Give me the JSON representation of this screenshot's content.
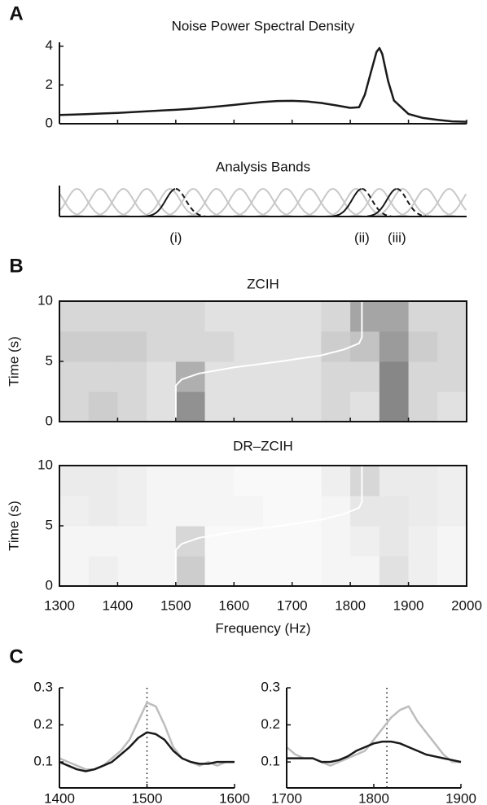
{
  "chart_data": [
    {
      "type": "line",
      "panel": "A",
      "title": "Noise Power Spectral Density",
      "x": [
        1300,
        1325,
        1350,
        1375,
        1400,
        1425,
        1450,
        1475,
        1500,
        1525,
        1550,
        1575,
        1600,
        1625,
        1650,
        1675,
        1700,
        1725,
        1750,
        1775,
        1800,
        1815,
        1825,
        1835,
        1845,
        1850,
        1855,
        1865,
        1875,
        1900,
        1925,
        1950,
        1975,
        2000
      ],
      "series": [
        {
          "color": "#1a1a1a",
          "values": [
            0.45,
            0.47,
            0.5,
            0.53,
            0.56,
            0.6,
            0.64,
            0.68,
            0.72,
            0.77,
            0.83,
            0.9,
            0.97,
            1.05,
            1.12,
            1.17,
            1.18,
            1.15,
            1.07,
            0.95,
            0.82,
            0.85,
            1.5,
            2.6,
            3.7,
            3.9,
            3.6,
            2.2,
            1.2,
            0.5,
            0.3,
            0.2,
            0.12,
            0.1
          ]
        }
      ],
      "xlim": [
        1300,
        2000
      ],
      "xticks": [
        1300,
        1400,
        1500,
        1600,
        1700,
        1800,
        1900,
        2000
      ],
      "xtick_labels": false,
      "ylim": [
        0,
        4.2
      ],
      "yticks": [
        0,
        2,
        4
      ]
    },
    {
      "type": "bands",
      "title": "Analysis Bands",
      "xlim": [
        1300,
        2000
      ],
      "color": "#c8c8c8",
      "centers": [
        1290,
        1330,
        1370,
        1410,
        1450,
        1490,
        1530,
        1570,
        1610,
        1650,
        1690,
        1730,
        1770,
        1810,
        1850,
        1890,
        1930,
        1970,
        2010
      ],
      "highlighted": [
        {
          "center": 1500,
          "label": "(i)"
        },
        {
          "center": 1820,
          "label": "(ii)"
        },
        {
          "center": 1880,
          "label": "(iii)"
        }
      ],
      "highlight_color": "#1a1a1a"
    },
    {
      "type": "heatmap",
      "panel": "B",
      "title": "ZCIH",
      "ylabel": "Time (s)",
      "xlim": [
        1300,
        2000
      ],
      "ylim": [
        0,
        10
      ],
      "xticks": [
        1300,
        1400,
        1500,
        1600,
        1700,
        1800,
        1900,
        2000
      ],
      "xtick_labels": false,
      "yticks": [
        0,
        5,
        10
      ],
      "x_bins": [
        1300,
        1350,
        1400,
        1450,
        1500,
        1550,
        1600,
        1650,
        1700,
        1750,
        1800,
        1850,
        1900,
        1950,
        2000
      ],
      "y_bins": [
        0,
        2.5,
        5,
        7.5,
        10
      ],
      "values": [
        [
          0.2,
          0.25,
          0.2,
          0.15,
          0.55,
          0.15,
          0.15,
          0.15,
          0.15,
          0.2,
          0.15,
          0.6,
          0.2,
          0.15
        ],
        [
          0.2,
          0.2,
          0.2,
          0.15,
          0.4,
          0.15,
          0.15,
          0.15,
          0.15,
          0.2,
          0.2,
          0.6,
          0.2,
          0.2
        ],
        [
          0.25,
          0.25,
          0.25,
          0.2,
          0.2,
          0.2,
          0.15,
          0.15,
          0.15,
          0.25,
          0.3,
          0.5,
          0.25,
          0.2
        ],
        [
          0.2,
          0.2,
          0.2,
          0.2,
          0.2,
          0.15,
          0.15,
          0.15,
          0.15,
          0.2,
          0.45,
          0.45,
          0.2,
          0.2
        ]
      ],
      "track": {
        "color": "#ffffff",
        "time": [
          0,
          1,
          2,
          3,
          3.5,
          4,
          4.5,
          5,
          5.5,
          6,
          6.5,
          7,
          8,
          9,
          10
        ],
        "frequency": [
          1500,
          1500,
          1500,
          1500,
          1510,
          1540,
          1600,
          1680,
          1750,
          1790,
          1815,
          1820,
          1820,
          1820,
          1820
        ]
      }
    },
    {
      "type": "heatmap",
      "title": "DR–ZCIH",
      "ylabel": "Time (s)",
      "xlabel": "Frequency (Hz)",
      "xlim": [
        1300,
        2000
      ],
      "ylim": [
        0,
        10
      ],
      "xticks": [
        1300,
        1400,
        1500,
        1600,
        1700,
        1800,
        1900,
        2000
      ],
      "yticks": [
        0,
        5,
        10
      ],
      "x_bins": [
        1300,
        1350,
        1400,
        1450,
        1500,
        1550,
        1600,
        1650,
        1700,
        1750,
        1800,
        1850,
        1900,
        1950,
        2000
      ],
      "y_bins": [
        0,
        2.5,
        5,
        7.5,
        10
      ],
      "values": [
        [
          0.05,
          0.08,
          0.05,
          0.05,
          0.25,
          0.03,
          0.03,
          0.03,
          0.03,
          0.05,
          0.05,
          0.15,
          0.08,
          0.05
        ],
        [
          0.05,
          0.05,
          0.05,
          0.05,
          0.2,
          0.03,
          0.03,
          0.03,
          0.03,
          0.05,
          0.08,
          0.12,
          0.08,
          0.05
        ],
        [
          0.08,
          0.1,
          0.08,
          0.05,
          0.05,
          0.05,
          0.05,
          0.03,
          0.03,
          0.05,
          0.12,
          0.12,
          0.1,
          0.08
        ],
        [
          0.1,
          0.1,
          0.08,
          0.05,
          0.05,
          0.05,
          0.03,
          0.03,
          0.03,
          0.08,
          0.2,
          0.1,
          0.1,
          0.08
        ]
      ],
      "track": {
        "color": "#ffffff",
        "time": [
          0,
          1,
          2,
          3,
          3.5,
          4,
          4.5,
          5,
          5.5,
          6,
          6.5,
          7,
          8,
          9,
          10
        ],
        "frequency": [
          1500,
          1500,
          1500,
          1500,
          1510,
          1540,
          1600,
          1680,
          1750,
          1790,
          1815,
          1820,
          1820,
          1820,
          1820
        ]
      }
    },
    {
      "type": "line",
      "panel": "C",
      "x": [
        1400,
        1410,
        1420,
        1430,
        1440,
        1450,
        1460,
        1470,
        1480,
        1490,
        1500,
        1510,
        1520,
        1530,
        1540,
        1550,
        1560,
        1570,
        1580,
        1590,
        1600
      ],
      "series": [
        {
          "color": "#bdbdbd",
          "values": [
            0.11,
            0.1,
            0.09,
            0.08,
            0.08,
            0.09,
            0.11,
            0.13,
            0.16,
            0.21,
            0.26,
            0.25,
            0.2,
            0.14,
            0.11,
            0.1,
            0.09,
            0.1,
            0.09,
            0.1,
            0.1
          ]
        },
        {
          "color": "#1a1a1a",
          "values": [
            0.1,
            0.09,
            0.08,
            0.075,
            0.08,
            0.09,
            0.1,
            0.12,
            0.14,
            0.165,
            0.18,
            0.175,
            0.16,
            0.13,
            0.11,
            0.1,
            0.095,
            0.095,
            0.1,
            0.1,
            0.1
          ]
        }
      ],
      "reference_x": 1500,
      "xlim": [
        1400,
        1600
      ],
      "xticks": [
        1400,
        1500,
        1600
      ],
      "ylim": [
        0.03,
        0.3
      ],
      "yticks": [
        0.1,
        0.2,
        0.3
      ]
    },
    {
      "type": "line",
      "x": [
        1700,
        1710,
        1720,
        1730,
        1740,
        1750,
        1760,
        1770,
        1780,
        1790,
        1800,
        1810,
        1820,
        1830,
        1840,
        1850,
        1860,
        1870,
        1880,
        1890,
        1900
      ],
      "series": [
        {
          "color": "#bdbdbd",
          "values": [
            0.14,
            0.12,
            0.11,
            0.11,
            0.1,
            0.09,
            0.1,
            0.11,
            0.12,
            0.13,
            0.16,
            0.19,
            0.22,
            0.24,
            0.25,
            0.21,
            0.18,
            0.15,
            0.12,
            0.1,
            0.1
          ]
        },
        {
          "color": "#1a1a1a",
          "values": [
            0.11,
            0.11,
            0.11,
            0.11,
            0.1,
            0.1,
            0.105,
            0.115,
            0.13,
            0.14,
            0.15,
            0.155,
            0.155,
            0.15,
            0.14,
            0.13,
            0.12,
            0.115,
            0.11,
            0.105,
            0.1
          ]
        }
      ],
      "reference_x": 1815,
      "xlim": [
        1700,
        1900
      ],
      "xticks": [
        1700,
        1800,
        1900
      ],
      "ylim": [
        0.03,
        0.3
      ],
      "yticks": [
        0.1,
        0.2,
        0.3
      ]
    }
  ]
}
